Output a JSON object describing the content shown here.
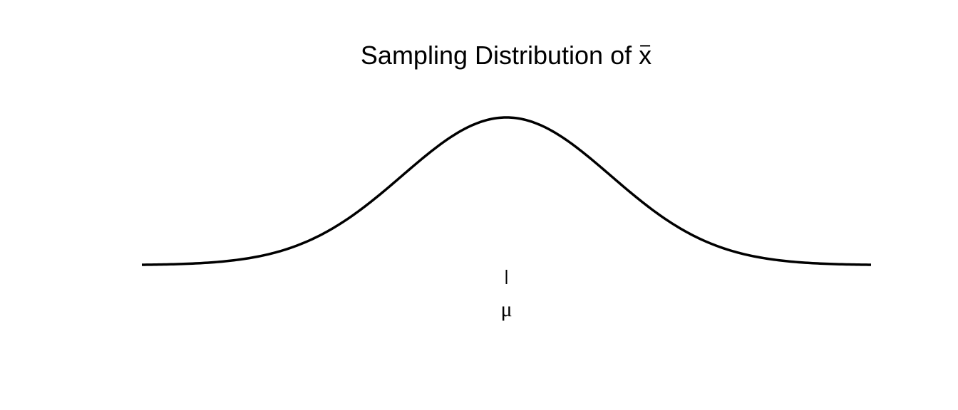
{
  "chart_data": {
    "type": "line",
    "title": "Sampling Distribution of x̄",
    "title_main": "Sampling Distribution of ",
    "title_symbol": "x",
    "title_symbol_accent": "overline",
    "xlabel": "",
    "ylabel": "",
    "x_tick_labels": [
      {
        "x": 0,
        "label": "μ"
      }
    ],
    "xlim": [
      -3.5,
      3.5
    ],
    "ylim": [
      0,
      0.4
    ],
    "axes_visible": false,
    "grid": false,
    "series": [
      {
        "curve": "normal-density",
        "mean": 0,
        "sd": 1,
        "x_range": [
          -3.5,
          3.5
        ],
        "color": "#000000"
      }
    ]
  }
}
